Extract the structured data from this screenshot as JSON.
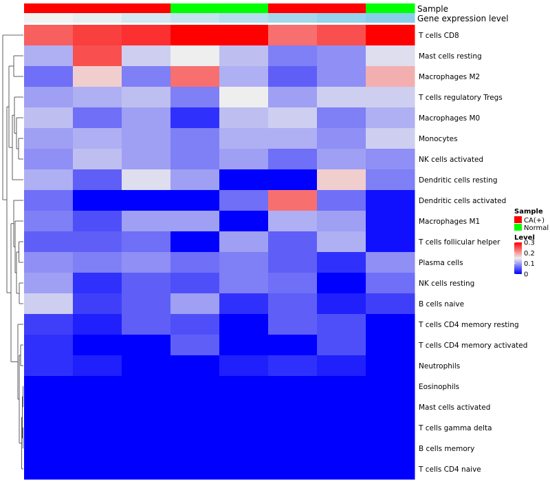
{
  "chart_data": {
    "type": "heatmap",
    "annotation_tracks": [
      {
        "name": "Sample",
        "values": [
          "CA(+)",
          "CA(+)",
          "CA(+)",
          "Normal",
          "Normal",
          "CA(+)",
          "CA(+)",
          "Normal"
        ]
      },
      {
        "name": "Gene expression level",
        "values": [
          0.02,
          0.05,
          0.1,
          0.14,
          0.18,
          0.22,
          0.26,
          0.3
        ]
      }
    ],
    "rows": [
      "T cells CD8",
      "Mast cells resting",
      "Macrophages M2",
      "T cells regulatory  Tregs",
      "Macrophages M0",
      "Monocytes",
      "NK cells activated",
      "Dendritic cells resting",
      "Dendritic cells activated",
      "Macrophages M1",
      "T cells follicular helper",
      "Plasma cells",
      "NK cells resting",
      "B cells naive",
      "T cells CD4 memory resting",
      "T cells CD4 memory activated",
      "Neutrophils",
      "Eosinophils",
      "Mast cells activated",
      "T cells gamma delta",
      "B cells memory",
      "T cells CD4 naive"
    ],
    "values": [
      [
        0.24,
        0.26,
        0.27,
        0.3,
        0.3,
        0.23,
        0.25,
        0.3
      ],
      [
        0.11,
        0.25,
        0.13,
        0.15,
        0.12,
        0.08,
        0.09,
        0.14
      ],
      [
        0.07,
        0.17,
        0.08,
        0.23,
        0.11,
        0.06,
        0.09,
        0.19
      ],
      [
        0.1,
        0.11,
        0.12,
        0.08,
        0.15,
        0.1,
        0.13,
        0.13
      ],
      [
        0.12,
        0.07,
        0.1,
        0.03,
        0.12,
        0.13,
        0.08,
        0.11
      ],
      [
        0.1,
        0.11,
        0.1,
        0.08,
        0.11,
        0.11,
        0.09,
        0.13
      ],
      [
        0.09,
        0.12,
        0.1,
        0.08,
        0.1,
        0.07,
        0.1,
        0.09
      ],
      [
        0.11,
        0.06,
        0.14,
        0.1,
        0.0,
        0.0,
        0.17,
        0.08
      ],
      [
        0.07,
        0.0,
        0.0,
        0.0,
        0.07,
        0.23,
        0.07,
        0.01
      ],
      [
        0.08,
        0.05,
        0.1,
        0.1,
        0.0,
        0.11,
        0.1,
        0.01
      ],
      [
        0.06,
        0.06,
        0.07,
        0.0,
        0.1,
        0.06,
        0.11,
        0.01
      ],
      [
        0.09,
        0.08,
        0.09,
        0.07,
        0.08,
        0.06,
        0.03,
        0.09
      ],
      [
        0.1,
        0.03,
        0.06,
        0.05,
        0.08,
        0.07,
        0.0,
        0.07
      ],
      [
        0.13,
        0.04,
        0.06,
        0.1,
        0.03,
        0.06,
        0.02,
        0.04
      ],
      [
        0.04,
        0.02,
        0.06,
        0.05,
        0.0,
        0.06,
        0.05,
        0.0
      ],
      [
        0.03,
        0.0,
        0.0,
        0.06,
        0.0,
        0.0,
        0.05,
        0.0
      ],
      [
        0.03,
        0.02,
        0.0,
        0.0,
        0.02,
        0.03,
        0.02,
        0.0
      ],
      [
        0.0,
        0.0,
        0.0,
        0.0,
        0.0,
        0.0,
        0.0,
        0.0
      ],
      [
        0.0,
        0.0,
        0.0,
        0.0,
        0.0,
        0.0,
        0.0,
        0.0
      ],
      [
        0.0,
        0.0,
        0.0,
        0.0,
        0.0,
        0.0,
        0.0,
        0.0
      ],
      [
        0.0,
        0.0,
        0.0,
        0.0,
        0.0,
        0.0,
        0.0,
        0.0
      ],
      [
        0.0,
        0.0,
        0.0,
        0.0,
        0.0,
        0.0,
        0.0,
        0.0
      ]
    ],
    "color_scale": {
      "min": 0,
      "mid": 0.15,
      "max": 0.3,
      "low_color": "#0000ff",
      "mid_color": "#eeeeee",
      "high_color": "#ff0000"
    },
    "legend": {
      "sample": {
        "title": "Sample",
        "entries": [
          {
            "label": "CA(+)",
            "color": "#ff0000"
          },
          {
            "label": "Normal",
            "color": "#00ff00"
          }
        ]
      },
      "level": {
        "title": "Level",
        "ticks": [
          "0.3",
          "0.2",
          "0.1",
          "0"
        ],
        "tick_values": [
          0.3,
          0.2,
          0.1,
          0
        ]
      },
      "placement": "right"
    },
    "gene_expression_colors": {
      "low": "#f2f2f2",
      "high": "#87ceeb"
    },
    "dendrogram": "rows"
  }
}
